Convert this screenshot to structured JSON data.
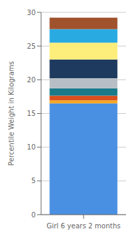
{
  "chart_data": {
    "type": "bar",
    "categories": [
      "Girl 6 years 2 months"
    ],
    "series": [
      {
        "color": "#4A90E2",
        "values": [
          16.5
        ]
      },
      {
        "color": "#F5A623",
        "values": [
          0.45
        ]
      },
      {
        "color": "#D94F1E",
        "values": [
          0.7
        ]
      },
      {
        "color": "#1A7A8A",
        "values": [
          1.1
        ]
      },
      {
        "color": "#B8BEC5",
        "values": [
          1.5
        ]
      },
      {
        "color": "#1E3A5F",
        "values": [
          2.75
        ]
      },
      {
        "color": "#FDED7A",
        "values": [
          2.5
        ]
      },
      {
        "color": "#29ABE2",
        "values": [
          2.0
        ]
      },
      {
        "color": "#A0522D",
        "values": [
          1.7
        ]
      }
    ],
    "stacked": true,
    "ylabel": "Percentile Weight in Kilograms",
    "ylim": [
      0,
      30
    ],
    "yticks": [
      0,
      5,
      10,
      15,
      20,
      25,
      30
    ],
    "grid": true
  }
}
